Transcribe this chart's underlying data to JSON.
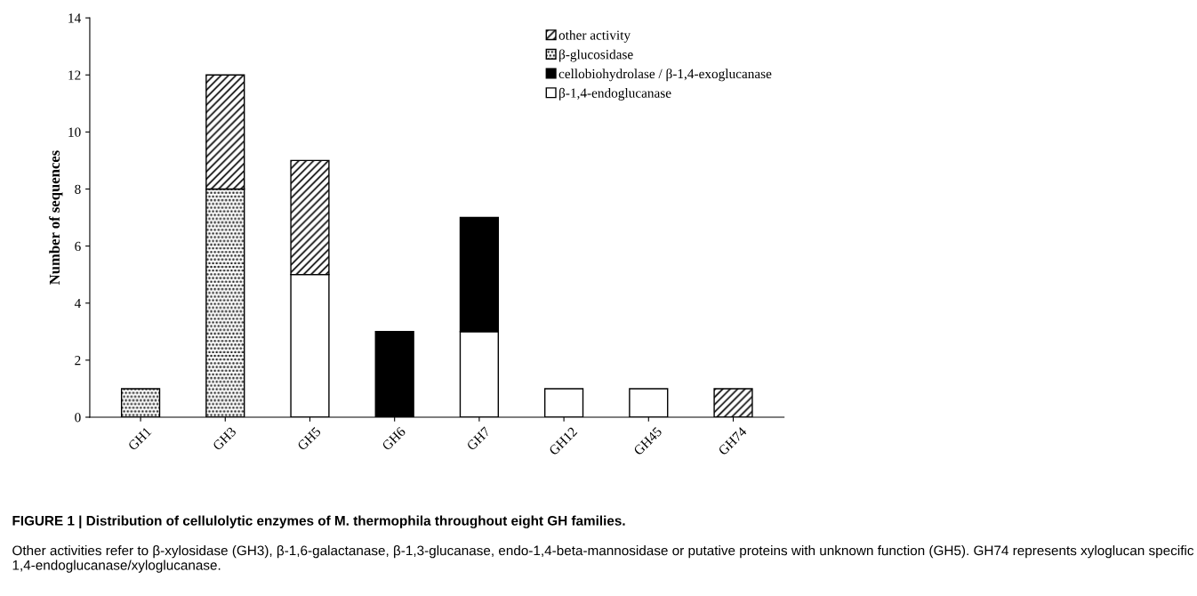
{
  "chart_data": {
    "type": "bar",
    "stacked": true,
    "categories": [
      "GH1",
      "GH3",
      "GH5",
      "GH6",
      "GH7",
      "GH12",
      "GH45",
      "GH74"
    ],
    "series": [
      {
        "name": "β-1,4-endoglucanase",
        "color": "#ffffff",
        "values": [
          0,
          0,
          5,
          0,
          3,
          1,
          1,
          0
        ]
      },
      {
        "name": "cellobiohydrolase / β-1,4-exoglucanase",
        "color": "#000000",
        "values": [
          0,
          0,
          0,
          3,
          4,
          0,
          0,
          0
        ]
      },
      {
        "name": "β-glucosidase",
        "color": "#000000",
        "values": [
          1,
          8,
          0,
          0,
          0,
          0,
          0,
          0
        ]
      },
      {
        "name": "other activity",
        "color": "#000000",
        "values": [
          0,
          4,
          4,
          0,
          0,
          0,
          0,
          1
        ]
      }
    ],
    "ylabel": "Number of sequences",
    "ylim": [
      0,
      14
    ],
    "yticks": [
      0,
      2,
      4,
      6,
      8,
      10,
      12,
      14
    ],
    "grid": false,
    "legend": "top right",
    "annotations": [
      "FIGURE 1 | Distribution of cellulolytic enzymes of M. thermophila throughout eight GH families.",
      "Other activities refer to β-xylosidase (GH3), β-1,6-galactanase, β-1,3-glucanase, endo-1,4-beta-mannosidase or putative proteins with unknown function (GH5). GH74 represents xyloglucan specific 1,4-endoglucanase/xyloglucanase."
    ]
  }
}
